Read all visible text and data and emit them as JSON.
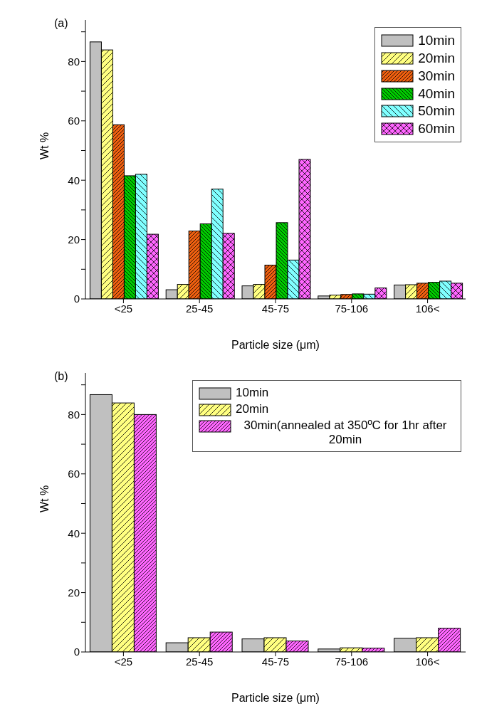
{
  "chart_data": [
    {
      "type": "bar",
      "annotations": [
        "(a)"
      ],
      "xlabel": "Particle size (μm)",
      "ylabel": "Wt %",
      "categories": [
        "<25",
        "25-45",
        "45-75",
        "75-106",
        "106<"
      ],
      "series": [
        {
          "name": "10min",
          "color": "#c0c0c0",
          "values": [
            86.6,
            3.1,
            4.4,
            1.0,
            4.7
          ]
        },
        {
          "name": "20min",
          "color": "#ffff80",
          "values": [
            83.9,
            4.9,
            4.9,
            1.3,
            4.8
          ]
        },
        {
          "name": "30min",
          "color": "#f06010",
          "values": [
            58.7,
            22.9,
            11.4,
            1.5,
            5.3
          ]
        },
        {
          "name": "40min",
          "color": "#00cc00",
          "values": [
            41.5,
            25.3,
            25.7,
            1.7,
            5.6
          ]
        },
        {
          "name": "50min",
          "color": "#80ffff",
          "values": [
            42.0,
            37.0,
            13.1,
            1.6,
            6.0
          ]
        },
        {
          "name": "60min",
          "color": "#ff66ff",
          "values": [
            21.8,
            22.1,
            47.0,
            3.7,
            5.3
          ]
        }
      ],
      "ylim": [
        0,
        94
      ],
      "yticks": [
        0,
        {
          "value": 10,
          "label": null
        },
        20,
        {
          "value": 30,
          "label": null
        },
        40,
        {
          "value": 50,
          "label": null
        },
        60,
        {
          "value": 70,
          "label": null
        },
        80,
        {
          "value": 90,
          "label": null
        }
      ],
      "grid": false,
      "legend": "top right"
    },
    {
      "type": "bar",
      "annotations": [
        "(b)"
      ],
      "xlabel": "Particle size (μm)",
      "ylabel": "Wt %",
      "categories": [
        "<25",
        "25-45",
        "45-75",
        "75-106",
        "106<"
      ],
      "series": [
        {
          "name": "10min",
          "color": "#c0c0c0",
          "values": [
            86.7,
            3.1,
            4.4,
            1.0,
            4.6
          ]
        },
        {
          "name": "20min",
          "color": "#ffff80",
          "values": [
            83.9,
            4.8,
            4.8,
            1.4,
            4.8
          ]
        },
        {
          "name": "30min(annealed at 350ºC for 1hr after 20min",
          "color": "#ff66ff",
          "values": [
            80.0,
            6.7,
            3.7,
            1.3,
            8.0
          ]
        }
      ],
      "ylim": [
        0,
        94
      ],
      "yticks": [
        0,
        {
          "value": 10,
          "label": null
        },
        20,
        {
          "value": 30,
          "label": null
        },
        40,
        {
          "value": 50,
          "label": null
        },
        60,
        {
          "value": 70,
          "label": null
        },
        80,
        {
          "value": 90,
          "label": null
        }
      ],
      "grid": false,
      "legend": "top right"
    }
  ]
}
